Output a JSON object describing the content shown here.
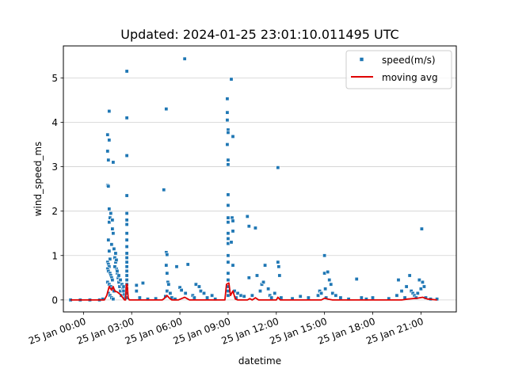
{
  "chart_data": {
    "type": "scatter",
    "title": "Updated: 2024-01-25 23:01:10.011495 UTC",
    "xlabel": "datetime",
    "ylabel": "wind_speed_ms",
    "x_unit": "hours since 25 Jan 00:00",
    "xlim": [
      -1.25,
      23.2
    ],
    "ylim": [
      -0.27,
      5.72
    ],
    "grid": "horizontal",
    "legend_position": "top-right",
    "x_ticks": [
      {
        "value": 0,
        "label": "25 Jan 00:00"
      },
      {
        "value": 3,
        "label": "25 Jan 03:00"
      },
      {
        "value": 6,
        "label": "25 Jan 06:00"
      },
      {
        "value": 9,
        "label": "25 Jan 09:00"
      },
      {
        "value": 12,
        "label": "25 Jan 12:00"
      },
      {
        "value": 15,
        "label": "25 Jan 15:00"
      },
      {
        "value": 18,
        "label": "25 Jan 18:00"
      },
      {
        "value": 21,
        "label": "25 Jan 21:00"
      }
    ],
    "y_ticks": [
      {
        "value": 0,
        "label": "0"
      },
      {
        "value": 1,
        "label": "1"
      },
      {
        "value": 2,
        "label": "2"
      },
      {
        "value": 3,
        "label": "3"
      },
      {
        "value": 4,
        "label": "4"
      },
      {
        "value": 5,
        "label": "5"
      }
    ],
    "series": [
      {
        "name": "speed(m/s)",
        "kind": "scatter",
        "color": "#1f77b4",
        "points": [
          [
            -0.8,
            0
          ],
          [
            -0.2,
            0
          ],
          [
            0.4,
            0
          ],
          [
            1.0,
            0
          ],
          [
            1.2,
            0.02
          ],
          [
            1.5,
            3.72
          ],
          [
            1.5,
            3.35
          ],
          [
            1.5,
            2.58
          ],
          [
            1.55,
            3.15
          ],
          [
            1.55,
            2.56
          ],
          [
            1.6,
            4.25
          ],
          [
            1.6,
            3.6
          ],
          [
            1.6,
            2.05
          ],
          [
            1.55,
            1.35
          ],
          [
            1.6,
            1.75
          ],
          [
            1.65,
            1.85
          ],
          [
            1.6,
            1.1
          ],
          [
            1.65,
            0.92
          ],
          [
            1.5,
            0.85
          ],
          [
            1.55,
            0.8
          ],
          [
            1.6,
            0.75
          ],
          [
            1.5,
            0.7
          ],
          [
            1.55,
            0.65
          ],
          [
            1.65,
            0.6
          ],
          [
            1.7,
            0.55
          ],
          [
            1.75,
            0.5
          ],
          [
            1.8,
            0.45
          ],
          [
            1.5,
            0.4
          ],
          [
            1.6,
            0.35
          ],
          [
            1.7,
            0.3
          ],
          [
            1.8,
            0.25
          ],
          [
            1.9,
            0.2
          ],
          [
            1.55,
            0.15
          ],
          [
            1.65,
            0.1
          ],
          [
            1.75,
            0.05
          ],
          [
            1.85,
            0.02
          ],
          [
            1.7,
            1.95
          ],
          [
            1.75,
            1.25
          ],
          [
            1.8,
            1.8
          ],
          [
            1.8,
            1.6
          ],
          [
            1.85,
            1.5
          ],
          [
            1.85,
            3.1
          ],
          [
            1.9,
            1.15
          ],
          [
            1.95,
            0.95
          ],
          [
            2.0,
            0.85
          ],
          [
            2.05,
            0.7
          ],
          [
            2.1,
            0.6
          ],
          [
            2.15,
            0.5
          ],
          [
            2.2,
            0.4
          ],
          [
            2.25,
            0.3
          ],
          [
            2.3,
            0.2
          ],
          [
            2.35,
            0.1
          ],
          [
            2.0,
            1.05
          ],
          [
            2.05,
            0.9
          ],
          [
            1.95,
            0.75
          ],
          [
            2.1,
            0.65
          ],
          [
            2.2,
            0.55
          ],
          [
            2.3,
            0.45
          ],
          [
            2.4,
            0.35
          ],
          [
            2.45,
            0.25
          ],
          [
            2.5,
            0.3
          ],
          [
            2.5,
            0.2
          ],
          [
            2.55,
            0.12
          ],
          [
            2.6,
            0.05
          ],
          [
            2.7,
            5.15
          ],
          [
            2.7,
            4.1
          ],
          [
            2.7,
            3.25
          ],
          [
            2.7,
            2.35
          ],
          [
            2.7,
            1.95
          ],
          [
            2.7,
            1.8
          ],
          [
            2.7,
            1.7
          ],
          [
            2.7,
            1.5
          ],
          [
            2.7,
            1.35
          ],
          [
            2.7,
            1.2
          ],
          [
            2.7,
            1.05
          ],
          [
            2.7,
            0.95
          ],
          [
            2.7,
            0.85
          ],
          [
            2.7,
            0.75
          ],
          [
            2.7,
            0.65
          ],
          [
            2.7,
            0.55
          ],
          [
            2.7,
            0.45
          ],
          [
            2.7,
            0.35
          ],
          [
            2.7,
            0.25
          ],
          [
            2.7,
            0.15
          ],
          [
            2.7,
            0.05
          ],
          [
            3.3,
            0.33
          ],
          [
            3.3,
            0.2
          ],
          [
            3.5,
            0.05
          ],
          [
            3.7,
            0.38
          ],
          [
            4.0,
            0.02
          ],
          [
            4.5,
            0.03
          ],
          [
            5.0,
            2.48
          ],
          [
            5.15,
            4.3
          ],
          [
            5.15,
            1.07
          ],
          [
            5.2,
            1.02
          ],
          [
            5.15,
            0.78
          ],
          [
            5.2,
            0.6
          ],
          [
            5.25,
            0.4
          ],
          [
            5.3,
            0.35
          ],
          [
            5.2,
            0.2
          ],
          [
            5.4,
            0.15
          ],
          [
            5.1,
            0.08
          ],
          [
            5.5,
            0.05
          ],
          [
            5.7,
            0.02
          ],
          [
            5.8,
            0.75
          ],
          [
            6.0,
            0.28
          ],
          [
            6.1,
            0.22
          ],
          [
            6.3,
            5.43
          ],
          [
            6.35,
            0.15
          ],
          [
            6.5,
            0.8
          ],
          [
            6.8,
            0.1
          ],
          [
            6.9,
            0.05
          ],
          [
            7.0,
            0.35
          ],
          [
            7.2,
            0.3
          ],
          [
            7.3,
            0.2
          ],
          [
            7.5,
            0.15
          ],
          [
            7.7,
            0.05
          ],
          [
            8.0,
            0.1
          ],
          [
            8.2,
            0.02
          ],
          [
            8.95,
            4.53
          ],
          [
            8.95,
            4.22
          ],
          [
            8.95,
            4.05
          ],
          [
            9.0,
            3.83
          ],
          [
            9.0,
            3.77
          ],
          [
            8.95,
            3.5
          ],
          [
            9.0,
            3.15
          ],
          [
            9.0,
            3.05
          ],
          [
            9.0,
            2.37
          ],
          [
            9.0,
            2.13
          ],
          [
            9.0,
            1.85
          ],
          [
            9.0,
            1.75
          ],
          [
            9.0,
            1.5
          ],
          [
            9.0,
            1.38
          ],
          [
            9.0,
            1.27
          ],
          [
            9.0,
            1.0
          ],
          [
            9.0,
            0.85
          ],
          [
            9.0,
            0.6
          ],
          [
            9.0,
            0.45
          ],
          [
            9.0,
            0.3
          ],
          [
            9.0,
            0.2
          ],
          [
            9.0,
            0.1
          ],
          [
            9.2,
            4.97
          ],
          [
            9.3,
            3.68
          ],
          [
            9.25,
            1.85
          ],
          [
            9.3,
            1.78
          ],
          [
            9.3,
            1.55
          ],
          [
            9.2,
            1.3
          ],
          [
            9.3,
            0.78
          ],
          [
            9.4,
            0.2
          ],
          [
            9.5,
            0.05
          ],
          [
            9.6,
            0.15
          ],
          [
            9.8,
            0.1
          ],
          [
            10.0,
            0.08
          ],
          [
            10.2,
            1.88
          ],
          [
            10.3,
            1.66
          ],
          [
            10.3,
            0.5
          ],
          [
            10.5,
            0.1
          ],
          [
            10.7,
            1.62
          ],
          [
            10.8,
            0.55
          ],
          [
            11.0,
            0.2
          ],
          [
            11.1,
            0.35
          ],
          [
            11.2,
            0.4
          ],
          [
            11.3,
            0.78
          ],
          [
            11.5,
            0.25
          ],
          [
            11.6,
            0.1
          ],
          [
            11.7,
            0.05
          ],
          [
            11.9,
            0.15
          ],
          [
            12.1,
            2.98
          ],
          [
            12.1,
            0.85
          ],
          [
            12.15,
            0.75
          ],
          [
            12.2,
            0.55
          ],
          [
            12.3,
            0.05
          ],
          [
            13.0,
            0.03
          ],
          [
            13.5,
            0.08
          ],
          [
            14.0,
            0.05
          ],
          [
            14.6,
            0.1
          ],
          [
            14.7,
            0.2
          ],
          [
            14.8,
            0.15
          ],
          [
            15.0,
            1.0
          ],
          [
            15.0,
            0.6
          ],
          [
            15.05,
            0.25
          ],
          [
            15.1,
            0.05
          ],
          [
            15.2,
            0.63
          ],
          [
            15.3,
            0.45
          ],
          [
            15.4,
            0.35
          ],
          [
            15.5,
            0.15
          ],
          [
            15.7,
            0.1
          ],
          [
            16.0,
            0.05
          ],
          [
            16.5,
            0.02
          ],
          [
            17.0,
            0.47
          ],
          [
            17.3,
            0.05
          ],
          [
            17.6,
            0.02
          ],
          [
            18.0,
            0.05
          ],
          [
            19.0,
            0.03
          ],
          [
            19.5,
            0.1
          ],
          [
            19.6,
            0.45
          ],
          [
            19.8,
            0.2
          ],
          [
            20.0,
            0.05
          ],
          [
            20.1,
            0.3
          ],
          [
            20.3,
            0.55
          ],
          [
            20.4,
            0.2
          ],
          [
            20.5,
            0.15
          ],
          [
            20.6,
            0.1
          ],
          [
            20.7,
            0.05
          ],
          [
            20.8,
            0.15
          ],
          [
            20.9,
            0.45
          ],
          [
            21.0,
            0.25
          ],
          [
            21.05,
            1.6
          ],
          [
            21.1,
            0.4
          ],
          [
            21.2,
            0.3
          ],
          [
            21.3,
            0.05
          ],
          [
            21.6,
            0.02
          ],
          [
            22.0,
            0.02
          ]
        ]
      },
      {
        "name": "moving avg",
        "kind": "line",
        "color": "#e00000",
        "points": [
          [
            -0.8,
            0
          ],
          [
            1.3,
            0
          ],
          [
            1.45,
            0.1
          ],
          [
            1.6,
            0.3
          ],
          [
            1.75,
            0.22
          ],
          [
            1.85,
            0.3
          ],
          [
            1.95,
            0.2
          ],
          [
            2.1,
            0.18
          ],
          [
            2.3,
            0.12
          ],
          [
            2.45,
            0.05
          ],
          [
            2.55,
            0
          ],
          [
            2.62,
            0
          ],
          [
            2.67,
            0.35
          ],
          [
            2.72,
            0.35
          ],
          [
            2.78,
            0.05
          ],
          [
            2.85,
            0
          ],
          [
            4.9,
            0
          ],
          [
            5.05,
            0.04
          ],
          [
            5.2,
            0.1
          ],
          [
            5.35,
            0.04
          ],
          [
            5.5,
            0
          ],
          [
            5.9,
            0
          ],
          [
            6.1,
            0.03
          ],
          [
            6.3,
            0.06
          ],
          [
            6.45,
            0.03
          ],
          [
            6.6,
            0
          ],
          [
            8.8,
            0
          ],
          [
            8.9,
            0.35
          ],
          [
            9.05,
            0.38
          ],
          [
            9.15,
            0.1
          ],
          [
            9.3,
            0.2
          ],
          [
            9.45,
            0.02
          ],
          [
            9.6,
            0
          ],
          [
            10.2,
            0
          ],
          [
            10.35,
            0.03
          ],
          [
            10.5,
            0
          ],
          [
            10.7,
            0.05
          ],
          [
            10.9,
            0
          ],
          [
            12.0,
            0
          ],
          [
            12.1,
            0.06
          ],
          [
            12.25,
            0
          ],
          [
            14.8,
            0
          ],
          [
            15.0,
            0.04
          ],
          [
            15.2,
            0.02
          ],
          [
            15.5,
            0
          ],
          [
            19.8,
            0
          ],
          [
            20.2,
            0.02
          ],
          [
            20.8,
            0.04
          ],
          [
            21.1,
            0.06
          ],
          [
            21.4,
            0.02
          ],
          [
            22.0,
            0
          ]
        ]
      }
    ]
  }
}
